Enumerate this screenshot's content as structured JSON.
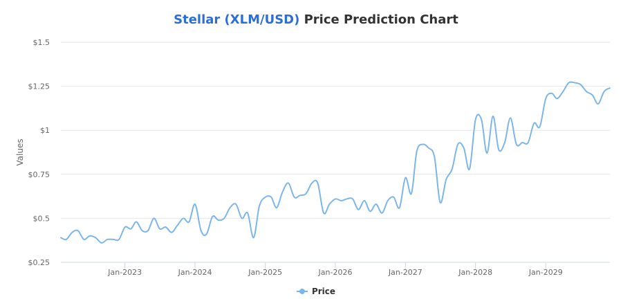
{
  "title": {
    "accent": "Stellar (XLM/USD)",
    "rest": " Price Prediction Chart"
  },
  "colors": {
    "accent_title": "#2b6fd6",
    "series": "#7cb5ec",
    "grid": "#e6e6e6"
  },
  "legend": {
    "label": "Price",
    "placement": "bottom-center"
  },
  "chart_data": {
    "type": "line",
    "title": "Stellar (XLM/USD) Price Prediction Chart",
    "xlabel": "",
    "ylabel": "Values",
    "ylim": [
      0.25,
      1.5
    ],
    "yticks": [
      {
        "value": 0.25,
        "label": "$0.25"
      },
      {
        "value": 0.5,
        "label": "$0.5"
      },
      {
        "value": 0.75,
        "label": "$0.75"
      },
      {
        "value": 1,
        "label": "$1"
      },
      {
        "value": 1.25,
        "label": "$1.25"
      },
      {
        "value": 1.5,
        "label": "$1.5"
      }
    ],
    "xlim": [
      "2022-02-01",
      "2029-12-01"
    ],
    "xticks": [
      {
        "value": "2023-01-01",
        "label": "Jan-2023"
      },
      {
        "value": "2024-01-01",
        "label": "Jan-2024"
      },
      {
        "value": "2025-01-01",
        "label": "Jan-2025"
      },
      {
        "value": "2026-01-01",
        "label": "Jan-2026"
      },
      {
        "value": "2027-01-01",
        "label": "Jan-2027"
      },
      {
        "value": "2028-01-01",
        "label": "Jan-2028"
      },
      {
        "value": "2029-01-01",
        "label": "Jan-2029"
      }
    ],
    "grid": true,
    "series": [
      {
        "name": "Price",
        "x": [
          "2022-02-01",
          "2022-03-01",
          "2022-04-01",
          "2022-05-01",
          "2022-06-01",
          "2022-07-01",
          "2022-08-01",
          "2022-09-01",
          "2022-10-01",
          "2022-11-01",
          "2022-12-01",
          "2023-01-01",
          "2023-02-01",
          "2023-03-01",
          "2023-04-01",
          "2023-05-01",
          "2023-06-01",
          "2023-07-01",
          "2023-08-01",
          "2023-09-01",
          "2023-10-01",
          "2023-11-01",
          "2023-12-01",
          "2024-01-01",
          "2024-02-01",
          "2024-03-01",
          "2024-04-01",
          "2024-05-01",
          "2024-06-01",
          "2024-07-01",
          "2024-08-01",
          "2024-09-01",
          "2024-10-01",
          "2024-11-01",
          "2024-12-01",
          "2025-01-01",
          "2025-02-01",
          "2025-03-01",
          "2025-04-01",
          "2025-05-01",
          "2025-06-01",
          "2025-07-01",
          "2025-08-01",
          "2025-09-01",
          "2025-10-01",
          "2025-11-01",
          "2025-12-01",
          "2026-01-01",
          "2026-02-01",
          "2026-03-01",
          "2026-04-01",
          "2026-05-01",
          "2026-06-01",
          "2026-07-01",
          "2026-08-01",
          "2026-09-01",
          "2026-10-01",
          "2026-11-01",
          "2026-12-01",
          "2027-01-01",
          "2027-02-01",
          "2027-03-01",
          "2027-04-01",
          "2027-05-01",
          "2027-06-01",
          "2027-07-01",
          "2027-08-01",
          "2027-09-01",
          "2027-10-01",
          "2027-11-01",
          "2027-12-01",
          "2028-01-01",
          "2028-02-01",
          "2028-03-01",
          "2028-04-01",
          "2028-05-01",
          "2028-06-01",
          "2028-07-01",
          "2028-08-01",
          "2028-09-01",
          "2028-10-01",
          "2028-11-01",
          "2028-12-01",
          "2029-01-01",
          "2029-02-01",
          "2029-03-01",
          "2029-04-01",
          "2029-05-01",
          "2029-06-01",
          "2029-07-01",
          "2029-08-01",
          "2029-09-01",
          "2029-10-01",
          "2029-11-01",
          "2029-12-01"
        ],
        "values": [
          0.39,
          0.38,
          0.42,
          0.43,
          0.38,
          0.4,
          0.39,
          0.36,
          0.38,
          0.38,
          0.38,
          0.45,
          0.44,
          0.48,
          0.43,
          0.43,
          0.5,
          0.44,
          0.45,
          0.42,
          0.46,
          0.5,
          0.48,
          0.58,
          0.43,
          0.41,
          0.51,
          0.49,
          0.5,
          0.56,
          0.58,
          0.5,
          0.53,
          0.39,
          0.57,
          0.62,
          0.62,
          0.56,
          0.65,
          0.7,
          0.62,
          0.63,
          0.64,
          0.7,
          0.7,
          0.53,
          0.58,
          0.61,
          0.6,
          0.61,
          0.61,
          0.55,
          0.6,
          0.54,
          0.58,
          0.53,
          0.6,
          0.62,
          0.56,
          0.73,
          0.64,
          0.88,
          0.92,
          0.9,
          0.85,
          0.59,
          0.72,
          0.78,
          0.92,
          0.9,
          0.78,
          1.06,
          1.06,
          0.87,
          1.08,
          0.89,
          0.93,
          1.07,
          0.92,
          0.93,
          0.93,
          1.04,
          1.02,
          1.18,
          1.21,
          1.18,
          1.22,
          1.27,
          1.27,
          1.26,
          1.22,
          1.2,
          1.15,
          1.22,
          1.24
        ]
      }
    ]
  }
}
